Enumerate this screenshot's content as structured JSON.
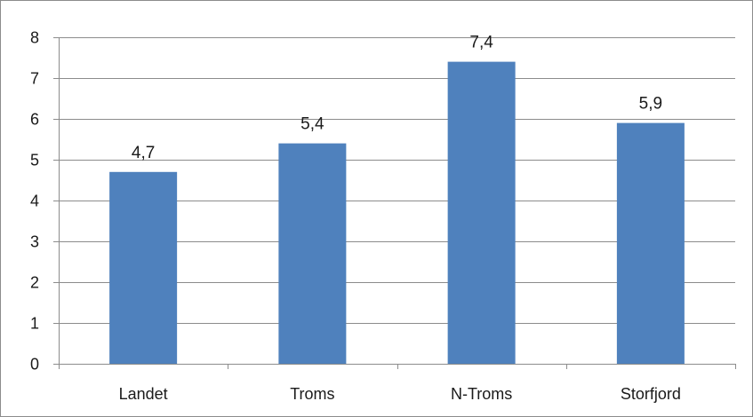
{
  "chart_data": {
    "type": "bar",
    "categories": [
      "Landet",
      "Troms",
      "N-Troms",
      "Storfjord"
    ],
    "values": [
      4.7,
      5.4,
      7.4,
      5.9
    ],
    "data_labels": [
      "4,7",
      "5,4",
      "7,4",
      "5,9"
    ],
    "title": "",
    "xlabel": "",
    "ylabel": "",
    "ylim": [
      0,
      8
    ],
    "yticks": [
      0,
      1,
      2,
      3,
      4,
      5,
      6,
      7,
      8
    ],
    "ytick_labels": [
      "0",
      "1",
      "2",
      "3",
      "4",
      "5",
      "6",
      "7",
      "8"
    ],
    "grid": true,
    "legend": "none",
    "colors": {
      "bar": "#4f81bd",
      "grid": "#8c8c8c",
      "axis": "#8c8c8c"
    }
  }
}
